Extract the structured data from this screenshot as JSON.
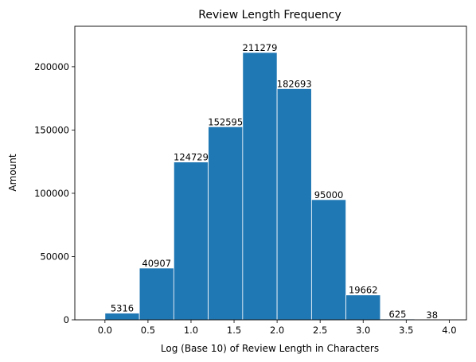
{
  "chart_data": {
    "type": "bar",
    "title": "Review Length Frequency",
    "xlabel": "Log (Base 10) of Review Length in Characters",
    "ylabel": "Amount",
    "bin_edges": [
      0.0,
      0.4,
      0.8,
      1.2,
      1.6,
      2.0,
      2.4,
      2.8,
      3.2,
      3.6,
      4.0
    ],
    "values": [
      5316,
      40907,
      124729,
      152595,
      211279,
      182693,
      95000,
      19662,
      625,
      38
    ],
    "xlim": [
      -0.35,
      4.2
    ],
    "ylim": [
      0,
      232000
    ],
    "xticks": [
      0.0,
      0.5,
      1.0,
      1.5,
      2.0,
      2.5,
      3.0,
      3.5,
      4.0
    ],
    "xtick_labels": [
      "0.0",
      "0.5",
      "1.0",
      "1.5",
      "2.0",
      "2.5",
      "3.0",
      "3.5",
      "4.0"
    ],
    "yticks": [
      0,
      50000,
      100000,
      150000,
      200000
    ],
    "ytick_labels": [
      "0",
      "50000",
      "100000",
      "150000",
      "200000"
    ],
    "bar_color": "#1f77b4",
    "bar_edge_color": "#ffffff",
    "grid": false,
    "legend": "none"
  }
}
